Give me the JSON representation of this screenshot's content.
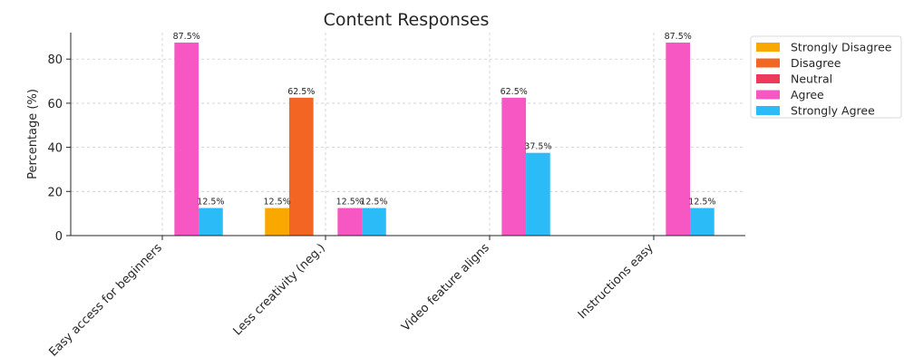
{
  "chart_data": {
    "type": "bar",
    "title": "Content Responses",
    "xlabel": "",
    "ylabel": "Percentage (%)",
    "ylim": [
      0,
      92
    ],
    "yticks": [
      0,
      20,
      40,
      60,
      80
    ],
    "grid": true,
    "legend_position": "top-right",
    "categories": [
      "Easy access for beginners",
      "Less creativity (neg.)",
      "Video feature aligns",
      "Instructions easy"
    ],
    "series": [
      {
        "name": "Strongly Disagree",
        "color": "#f9a800",
        "values": [
          0,
          12.5,
          0,
          0
        ]
      },
      {
        "name": "Disagree",
        "color": "#f26522",
        "values": [
          0,
          62.5,
          0,
          0
        ]
      },
      {
        "name": "Neutral",
        "color": "#ee3a5a",
        "values": [
          0,
          0,
          0,
          0
        ]
      },
      {
        "name": "Agree",
        "color": "#f757c3",
        "values": [
          87.5,
          12.5,
          62.5,
          87.5
        ]
      },
      {
        "name": "Strongly Agree",
        "color": "#2bbcf7",
        "values": [
          12.5,
          12.5,
          37.5,
          12.5
        ]
      }
    ]
  }
}
